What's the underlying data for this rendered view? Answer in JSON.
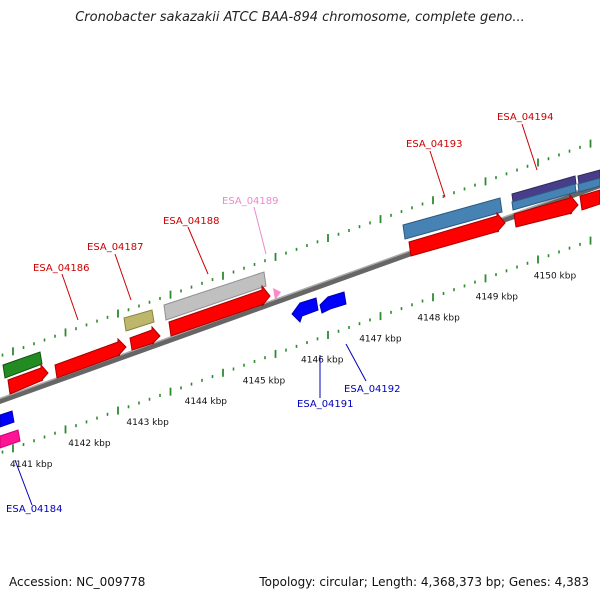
{
  "header": {
    "title": "Cronobacter sakazakii ATCC BAA-894 chromosome, complete geno..."
  },
  "footer": {
    "accession": "Accession: NC_009778",
    "summary": "Topology: circular; Length: 4,368,373 bp; Genes: 4,383"
  },
  "colors": {
    "forward_label": "#cc0000",
    "reverse_label": "#0000bb",
    "pseudo_label": "#ee88cc",
    "backbone": "#808080",
    "tick": "#2e8b2e",
    "cds": "#ff0000",
    "reverse_cds": "#0000ff",
    "steelblue": "#4682b4",
    "gray_feature": "#c0c0c0",
    "olive_feature": "#bdb76b",
    "green_feature": "#228b22",
    "purple_feature": "#483d8b",
    "magenta_feature": "#ff1493"
  },
  "scale": {
    "tick_labels": [
      "4141 kbp",
      "4142 kbp",
      "4143 kbp",
      "4144 kbp",
      "4145 kbp",
      "4146 kbp",
      "4147 kbp",
      "4148 kbp",
      "4149 kbp",
      "4150 kbp"
    ]
  },
  "genes": [
    {
      "label": "ESA_04184",
      "strand": "reverse"
    },
    {
      "label": "ESA_04186",
      "strand": "forward"
    },
    {
      "label": "ESA_04187",
      "strand": "forward"
    },
    {
      "label": "ESA_04188",
      "strand": "forward"
    },
    {
      "label": "ESA_04189",
      "strand": "pseudo"
    },
    {
      "label": "ESA_04191",
      "strand": "reverse"
    },
    {
      "label": "ESA_04192",
      "strand": "reverse"
    },
    {
      "label": "ESA_04193",
      "strand": "forward"
    },
    {
      "label": "ESA_04194",
      "strand": "forward"
    }
  ]
}
